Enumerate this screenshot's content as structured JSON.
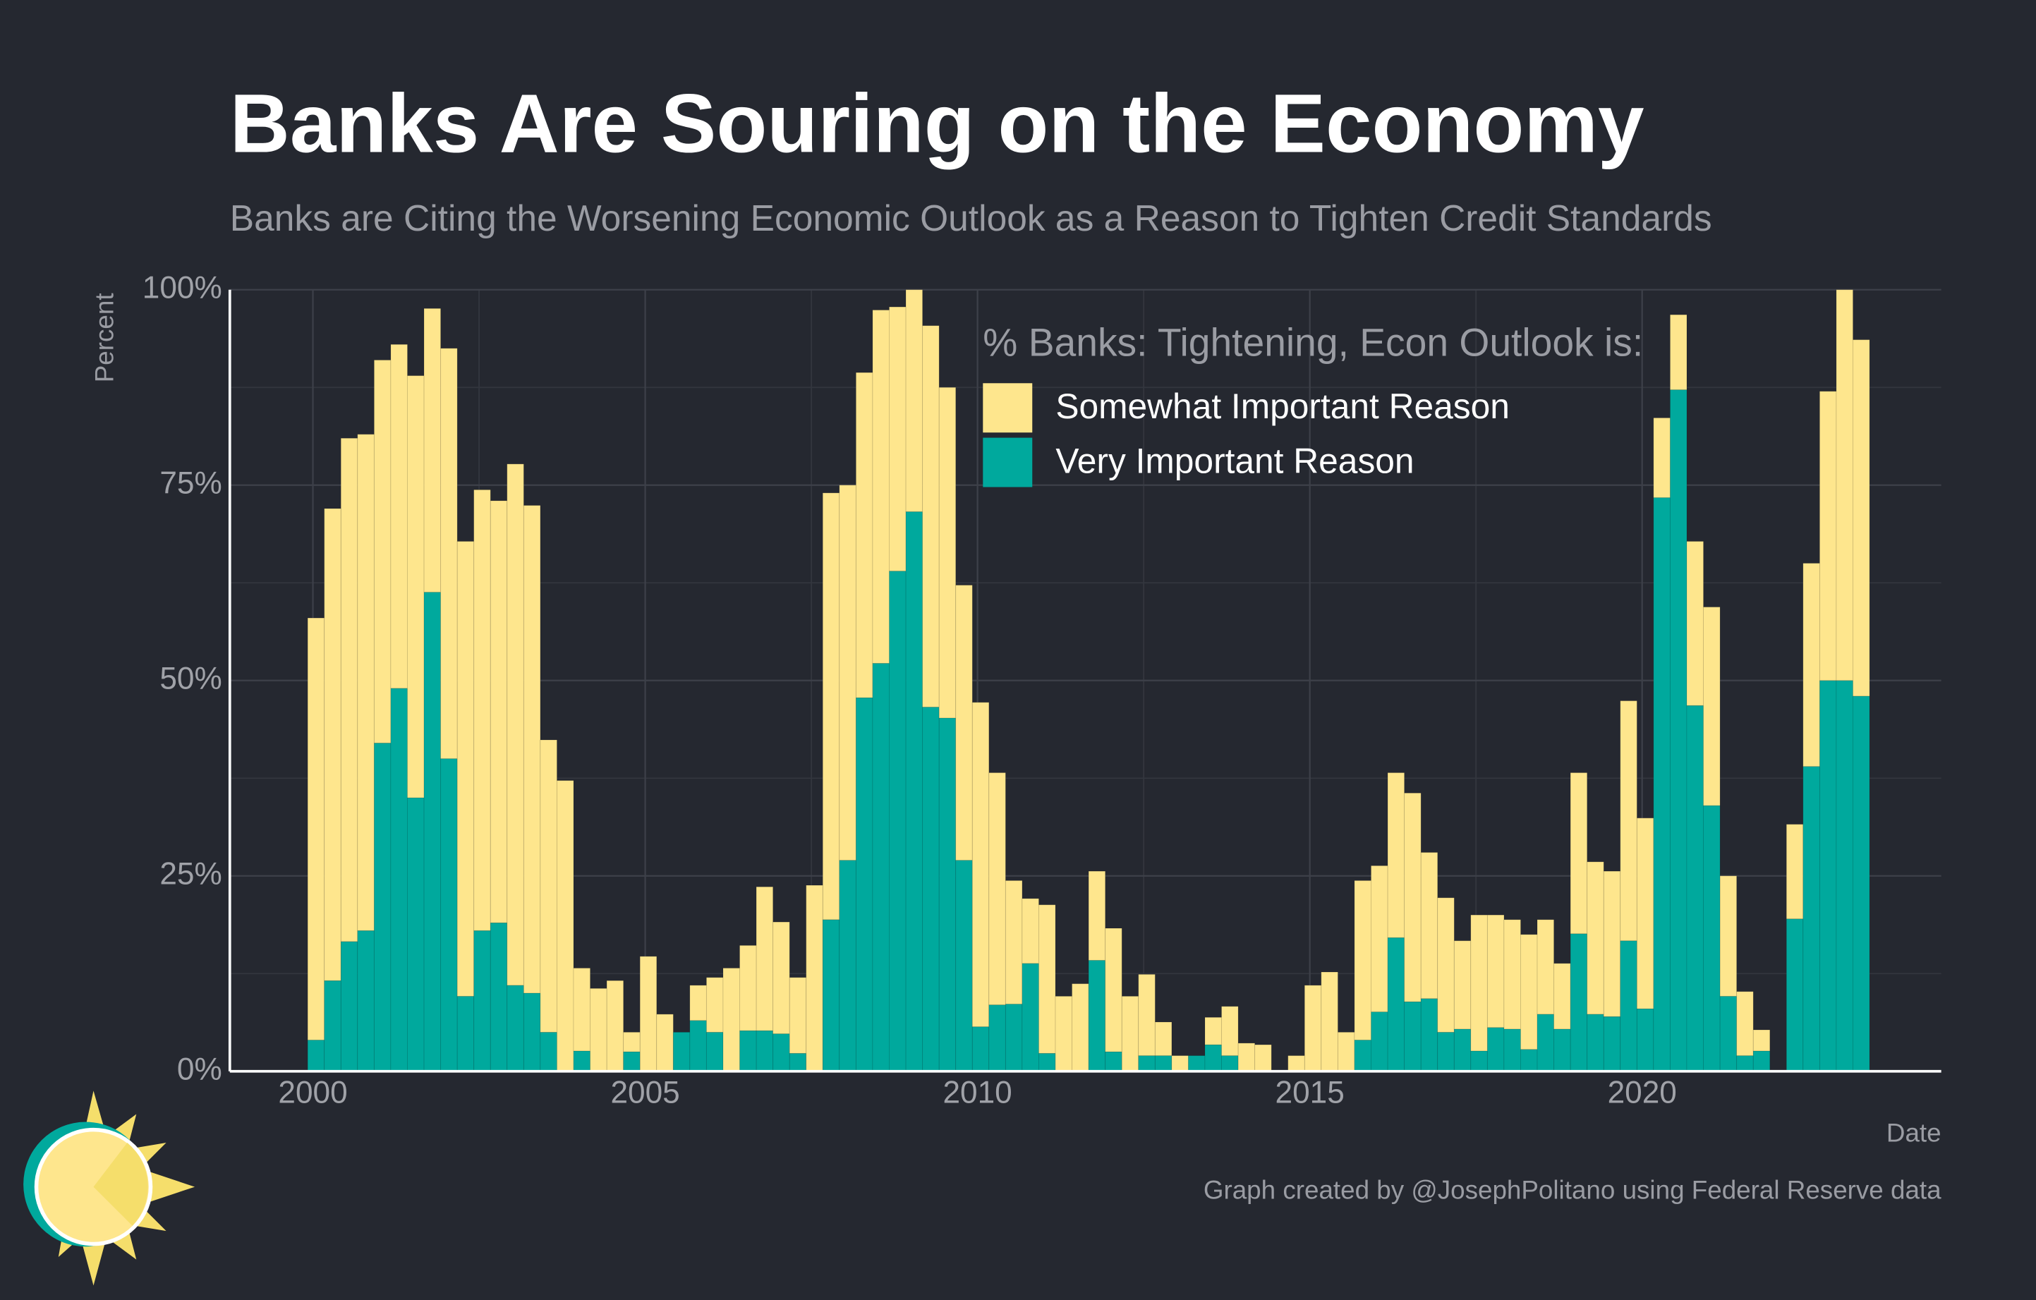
{
  "chart_data": {
    "type": "stacked_bar",
    "title": "Banks Are Souring on the Economy",
    "subtitle": "Banks are Citing the Worsening Economic Outlook as a Reason to Tighten Credit Standards",
    "y_label": "Percent",
    "x_label": "Date",
    "legend_title": "% Banks: Tightening, Econ Outlook is:",
    "credit": "Graph created by @JosephPolitano using Federal Reserve data",
    "x": [
      2000,
      2000.25,
      2000.5,
      2000.75,
      2001,
      2001.25,
      2001.5,
      2001.75,
      2002,
      2002.25,
      2002.5,
      2002.75,
      2003,
      2003.25,
      2003.5,
      2003.75,
      2004,
      2004.25,
      2004.5,
      2004.75,
      2005,
      2005.25,
      2005.5,
      2005.75,
      2006,
      2006.25,
      2006.5,
      2006.75,
      2007,
      2007.25,
      2007.5,
      2007.75,
      2008,
      2008.25,
      2008.5,
      2008.75,
      2009,
      2009.25,
      2009.5,
      2009.75,
      2010,
      2010.25,
      2010.5,
      2010.75,
      2011,
      2011.25,
      2011.5,
      2011.75,
      2012,
      2012.25,
      2012.5,
      2012.75,
      2013,
      2013.25,
      2013.5,
      2013.75,
      2014,
      2014.25,
      2014.5,
      2014.75,
      2015,
      2015.25,
      2015.5,
      2015.75,
      2016,
      2016.25,
      2016.5,
      2016.75,
      2017,
      2017.25,
      2017.5,
      2017.75,
      2018,
      2018.25,
      2018.5,
      2018.75,
      2019,
      2019.25,
      2019.5,
      2019.75,
      2020,
      2020.25,
      2020.5,
      2020.75,
      2021,
      2021.25,
      2021.5,
      2021.75,
      2022,
      2022.25,
      2022.5,
      2022.75,
      2023,
      2023.25
    ],
    "series": [
      {
        "name": "Somewhat Important Reason",
        "color": "#fee68d",
        "values": [
          54,
          60.4,
          64.4,
          63.5,
          49,
          44,
          54,
          36.3,
          52.5,
          58.2,
          56.4,
          54,
          66.7,
          62.4,
          37.4,
          37.2,
          10.6,
          10.6,
          11.6,
          2.5,
          14.7,
          7.3,
          0,
          4.5,
          7,
          13.2,
          10.9,
          18.4,
          14.3,
          9.7,
          23.8,
          54.6,
          48,
          41.6,
          45.2,
          33.8,
          28.4,
          48.8,
          42.3,
          35.2,
          41.5,
          29.7,
          15.8,
          8.3,
          19,
          9.6,
          11.2,
          11.4,
          15.8,
          9.6,
          10.4,
          4.3,
          2,
          0,
          3.5,
          6.3,
          3.6,
          3.4,
          0,
          2,
          11,
          12.7,
          5,
          20.4,
          18.7,
          21.1,
          26.7,
          18.7,
          17.2,
          11.3,
          17.4,
          14.4,
          14,
          14.7,
          12.1,
          8.4,
          20.6,
          19.5,
          18.6,
          30.7,
          24.4,
          10.2,
          9.6,
          21,
          25.4,
          15.4,
          8.2,
          2.7,
          0,
          12.1,
          26,
          37,
          50,
          45.6
        ]
      },
      {
        "name": "Very Important Reason",
        "color": "#00a99d",
        "values": [
          4,
          11.6,
          16.6,
          18,
          42,
          49,
          35,
          61.3,
          40,
          9.6,
          18,
          19,
          11,
          10,
          5,
          0,
          2.6,
          0,
          0,
          2.5,
          0,
          0,
          5,
          6.5,
          5,
          0,
          5.2,
          5.2,
          4.8,
          2.3,
          0,
          19.4,
          27,
          47.8,
          52.2,
          64,
          71.6,
          46.6,
          45.2,
          27,
          5.7,
          8.5,
          8.6,
          13.8,
          2.3,
          0,
          0,
          14.2,
          2.5,
          0,
          2,
          2,
          0,
          2,
          3.4,
          2,
          0,
          0,
          0,
          0,
          0,
          0,
          0,
          4,
          7.6,
          17.1,
          8.9,
          9.3,
          5,
          5.4,
          2.6,
          5.6,
          5.4,
          2.8,
          7.3,
          5.4,
          17.6,
          7.3,
          7,
          16.7,
          8,
          73.4,
          87.2,
          46.8,
          34,
          9.6,
          2,
          2.6,
          0,
          19.5,
          39,
          50,
          50,
          48
        ]
      }
    ],
    "xlim": [
      1998.75,
      2024.5
    ],
    "xticks": [
      2000,
      2005,
      2010,
      2015,
      2020
    ],
    "ylim": [
      0,
      100
    ],
    "yticks": [
      {
        "value": 0,
        "label": "0%"
      },
      {
        "value": 25,
        "label": "25%"
      },
      {
        "value": 50,
        "label": "50%"
      },
      {
        "value": 75,
        "label": "75%"
      },
      {
        "value": 100,
        "label": "100%"
      }
    ],
    "grid": true
  }
}
